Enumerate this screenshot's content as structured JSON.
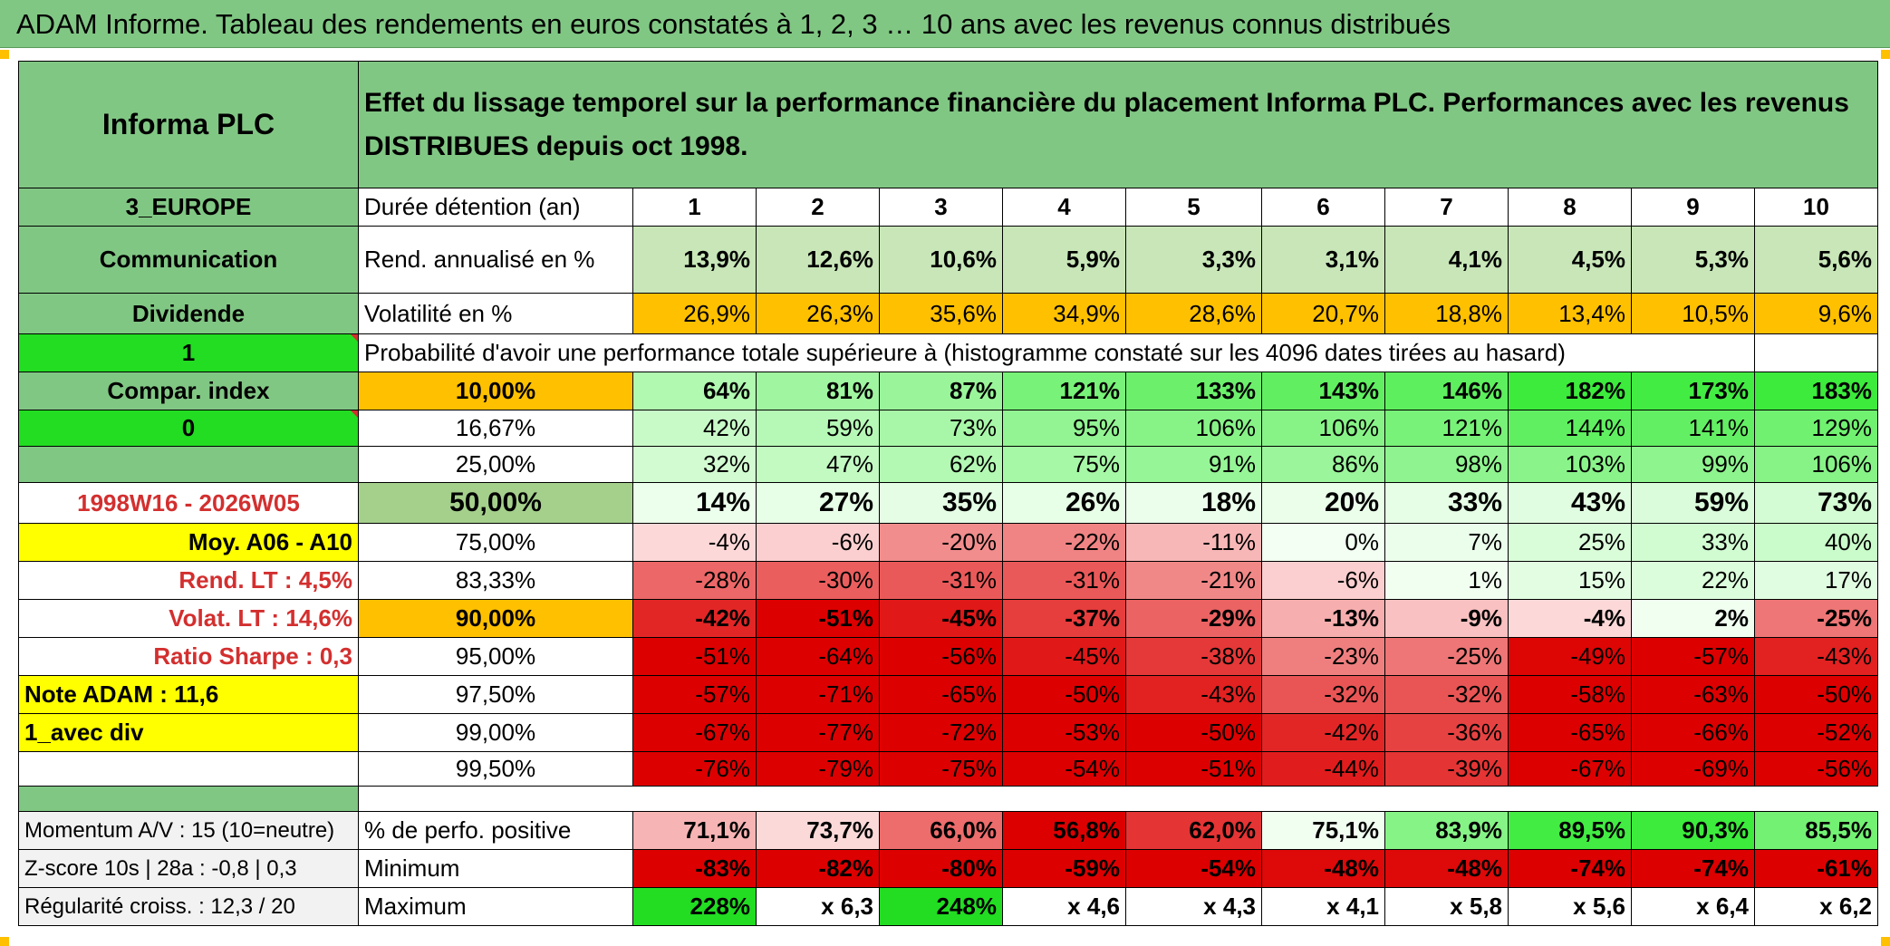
{
  "title": "ADAM Informe. Tableau des rendements en euros constatés à 1, 2, 3 … 10 ans avec les revenus connus distribués",
  "header": {
    "company": "Informa PLC",
    "description": "Effet du lissage temporel sur la performance financière du placement Informa PLC. Performances avec les revenus DISTRIBUES depuis oct 1998."
  },
  "side": {
    "region": "3_EUROPE",
    "sector": "Communication",
    "dividend": "Dividende",
    "flag1": "1",
    "compar_index": "Compar. index",
    "flag0": "0",
    "period": "1998W16 - 2026W05",
    "moy": "Moy. A06 - A10",
    "rend_lt": "Rend. LT :   4,5%",
    "volat_lt": "Volat. LT :   14,6%",
    "sharpe": "Ratio Sharpe :   0,3",
    "note": "Note ADAM : 11,6",
    "avec_div": "1_avec div",
    "momentum": "Momentum A/V : 15 (10=neutre)",
    "zscore": "Z-score 10s | 28a : -0,8 | 0,3",
    "regularite": "Régularité croiss. : 12,3 / 20"
  },
  "labels": {
    "duree": "Durée détention (an)",
    "rend": "Rend. annualisé en %",
    "vol": "Volatilité en %",
    "proba": "Probabilité d'avoir une performance totale supérieure à (histogramme constaté sur les 4096 dates tirées au hasard)",
    "pos": "% de perfo. positive",
    "min": "Minimum",
    "max": "Maximum"
  },
  "years": [
    "1",
    "2",
    "3",
    "4",
    "5",
    "6",
    "7",
    "8",
    "9",
    "10"
  ],
  "rend": [
    "13,9%",
    "12,6%",
    "10,6%",
    "5,9%",
    "3,3%",
    "3,1%",
    "4,1%",
    "4,5%",
    "5,3%",
    "5,6%"
  ],
  "vol": [
    "26,9%",
    "26,3%",
    "35,6%",
    "34,9%",
    "28,6%",
    "20,7%",
    "18,8%",
    "13,4%",
    "10,5%",
    "9,6%"
  ],
  "proba_rows": [
    {
      "p": "10,00%",
      "v": [
        "64%",
        "81%",
        "87%",
        "121%",
        "133%",
        "143%",
        "146%",
        "182%",
        "173%",
        "183%"
      ]
    },
    {
      "p": "16,67%",
      "v": [
        "42%",
        "59%",
        "73%",
        "95%",
        "106%",
        "106%",
        "121%",
        "144%",
        "141%",
        "129%"
      ]
    },
    {
      "p": "25,00%",
      "v": [
        "32%",
        "47%",
        "62%",
        "75%",
        "91%",
        "86%",
        "98%",
        "103%",
        "99%",
        "106%"
      ]
    },
    {
      "p": "50,00%",
      "v": [
        "14%",
        "27%",
        "35%",
        "26%",
        "18%",
        "20%",
        "33%",
        "43%",
        "59%",
        "73%"
      ]
    },
    {
      "p": "75,00%",
      "v": [
        "-4%",
        "-6%",
        "-20%",
        "-22%",
        "-11%",
        "0%",
        "7%",
        "25%",
        "33%",
        "40%"
      ]
    },
    {
      "p": "83,33%",
      "v": [
        "-28%",
        "-30%",
        "-31%",
        "-31%",
        "-21%",
        "-6%",
        "1%",
        "15%",
        "22%",
        "17%"
      ]
    },
    {
      "p": "90,00%",
      "v": [
        "-42%",
        "-51%",
        "-45%",
        "-37%",
        "-29%",
        "-13%",
        "-9%",
        "-4%",
        "2%",
        "-25%"
      ]
    },
    {
      "p": "95,00%",
      "v": [
        "-51%",
        "-64%",
        "-56%",
        "-45%",
        "-38%",
        "-23%",
        "-25%",
        "-49%",
        "-57%",
        "-43%"
      ]
    },
    {
      "p": "97,50%",
      "v": [
        "-57%",
        "-71%",
        "-65%",
        "-50%",
        "-43%",
        "-32%",
        "-32%",
        "-58%",
        "-63%",
        "-50%"
      ]
    },
    {
      "p": "99,00%",
      "v": [
        "-67%",
        "-77%",
        "-72%",
        "-53%",
        "-50%",
        "-42%",
        "-36%",
        "-65%",
        "-66%",
        "-52%"
      ]
    },
    {
      "p": "99,50%",
      "v": [
        "-76%",
        "-79%",
        "-75%",
        "-54%",
        "-51%",
        "-44%",
        "-39%",
        "-67%",
        "-69%",
        "-56%"
      ]
    }
  ],
  "pos": [
    "71,1%",
    "73,7%",
    "66,0%",
    "56,8%",
    "62,0%",
    "75,1%",
    "83,9%",
    "89,5%",
    "90,3%",
    "85,5%"
  ],
  "min": [
    "-83%",
    "-82%",
    "-80%",
    "-59%",
    "-54%",
    "-48%",
    "-48%",
    "-74%",
    "-74%",
    "-61%"
  ],
  "max": [
    "228%",
    "x 6,3",
    "248%",
    "x 4,6",
    "x 4,3",
    "x 4,1",
    "x 5,8",
    "x 5,6",
    "x 6,4",
    "x 6,2"
  ],
  "colors": {
    "header_green": "#81c784",
    "bright_green": "#22dd22",
    "orange": "#ffc000",
    "yellow": "#ffff00",
    "dark_red": "#dd0000",
    "red_text": "#d32f2f"
  }
}
